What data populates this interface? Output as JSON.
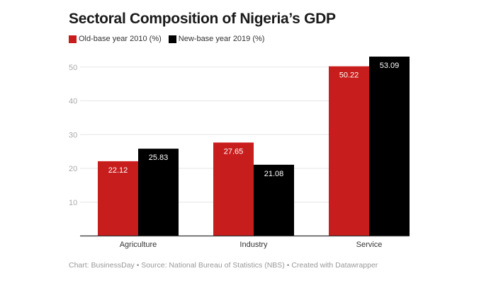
{
  "chart_data": {
    "type": "bar",
    "title": "Sectoral Composition of Nigeria’s GDP",
    "categories": [
      "Agriculture",
      "Industry",
      "Service"
    ],
    "series": [
      {
        "name": "Old-base year 2010 (%)",
        "color": "#c71e1d",
        "values": [
          22.12,
          27.65,
          50.22
        ]
      },
      {
        "name": "New-base year 2019 (%)",
        "color": "#000000",
        "values": [
          25.83,
          21.08,
          53.09
        ]
      }
    ],
    "yticks": [
      10,
      20,
      30,
      40,
      50
    ],
    "ylim": [
      0,
      55
    ],
    "grid": true,
    "legend": "top-left",
    "data_labels": true,
    "xlabel": "",
    "ylabel": ""
  },
  "footer": "Chart: BusinessDay • Source: National Bureau of Statistics (NBS) • Created with Datawrapper"
}
